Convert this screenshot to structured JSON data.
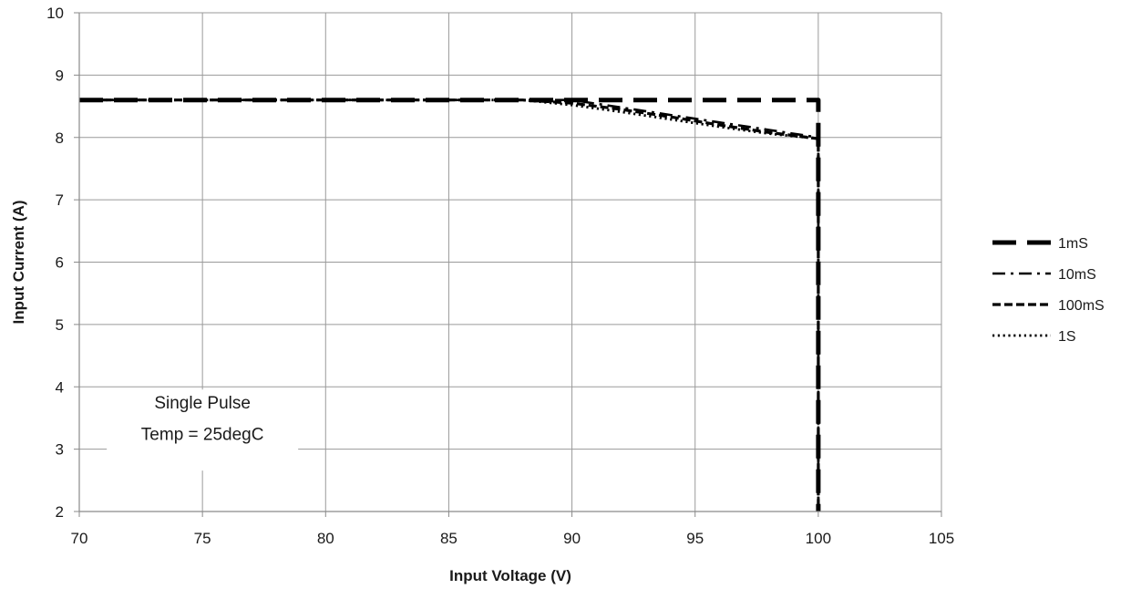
{
  "chart_data": {
    "type": "line",
    "title": "",
    "xlabel": "Input Voltage (V)",
    "ylabel": "Input Current (A)",
    "xlim": [
      70,
      105
    ],
    "ylim": [
      2,
      10
    ],
    "x_ticks": [
      "70",
      "75",
      "80",
      "85",
      "90",
      "95",
      "100",
      "105"
    ],
    "y_ticks": [
      "2",
      "3",
      "4",
      "5",
      "6",
      "7",
      "8",
      "9",
      "10"
    ],
    "grid": true,
    "legend_position": "right",
    "annotation": {
      "line1": "Single Pulse",
      "line2": "Temp = 25degC"
    },
    "series": [
      {
        "name": "1mS",
        "dash": "long-dash",
        "points": [
          [
            70,
            8.6
          ],
          [
            100,
            8.6
          ],
          [
            100,
            2
          ]
        ]
      },
      {
        "name": "10mS",
        "dash": "dash-dot",
        "points": [
          [
            70,
            8.6
          ],
          [
            88.5,
            8.6
          ],
          [
            90,
            8.6
          ],
          [
            92,
            8.48
          ],
          [
            94,
            8.36
          ],
          [
            96,
            8.24
          ],
          [
            98,
            8.12
          ],
          [
            100,
            8.0
          ],
          [
            100,
            2
          ]
        ]
      },
      {
        "name": "100mS",
        "dash": "short-dash",
        "points": [
          [
            70,
            8.6
          ],
          [
            88,
            8.6
          ],
          [
            90,
            8.55
          ],
          [
            92,
            8.45
          ],
          [
            94,
            8.33
          ],
          [
            96,
            8.2
          ],
          [
            98,
            8.08
          ],
          [
            100,
            7.98
          ],
          [
            100,
            2
          ]
        ]
      },
      {
        "name": "1S",
        "dash": "dotted",
        "points": [
          [
            70,
            8.6
          ],
          [
            88,
            8.6
          ],
          [
            90,
            8.52
          ],
          [
            92,
            8.41
          ],
          [
            94,
            8.29
          ],
          [
            96,
            8.17
          ],
          [
            98,
            8.06
          ],
          [
            100,
            7.98
          ],
          [
            100,
            2
          ]
        ]
      }
    ]
  }
}
